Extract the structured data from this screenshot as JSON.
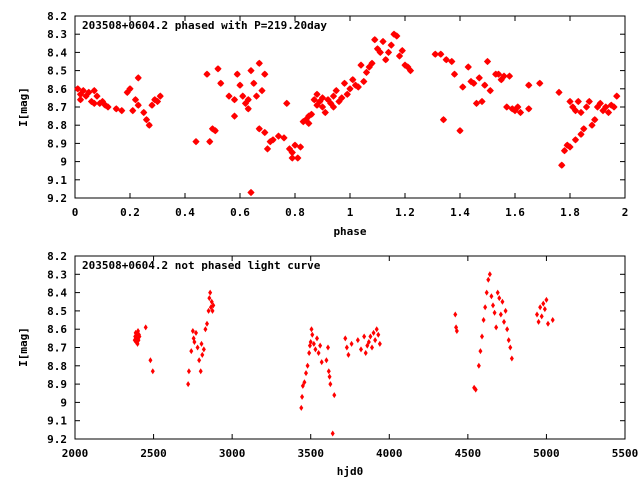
{
  "chart_data": [
    {
      "type": "scatter",
      "title": "203508+0604.2 phased with P=219.20day",
      "xlabel": "phase",
      "ylabel": "I[mag]",
      "xlim": [
        0,
        2
      ],
      "ylim": [
        8.2,
        9.2
      ],
      "y_inverted": true,
      "xticks": [
        "0",
        "0.2",
        "0.4",
        "0.6",
        "0.8",
        "1",
        "1.2",
        "1.4",
        "1.6",
        "1.8",
        "2"
      ],
      "yticks": [
        "8.2",
        "8.3",
        "8.4",
        "8.5",
        "8.6",
        "8.7",
        "8.8",
        "8.9",
        "9",
        "9.1",
        "9.2"
      ],
      "grid": false,
      "color": "#ff0000",
      "marker": "star",
      "points": [
        [
          0.01,
          8.6
        ],
        [
          0.02,
          8.63
        ],
        [
          0.02,
          8.66
        ],
        [
          0.03,
          8.61
        ],
        [
          0.04,
          8.64
        ],
        [
          0.05,
          8.62
        ],
        [
          0.06,
          8.67
        ],
        [
          0.07,
          8.61
        ],
        [
          0.07,
          8.68
        ],
        [
          0.08,
          8.64
        ],
        [
          0.09,
          8.68
        ],
        [
          0.1,
          8.67
        ],
        [
          0.11,
          8.69
        ],
        [
          0.12,
          8.7
        ],
        [
          0.15,
          8.71
        ],
        [
          0.17,
          8.72
        ],
        [
          0.19,
          8.62
        ],
        [
          0.2,
          8.6
        ],
        [
          0.21,
          8.72
        ],
        [
          0.22,
          8.66
        ],
        [
          0.23,
          8.54
        ],
        [
          0.23,
          8.69
        ],
        [
          0.25,
          8.73
        ],
        [
          0.26,
          8.77
        ],
        [
          0.27,
          8.8
        ],
        [
          0.28,
          8.69
        ],
        [
          0.29,
          8.66
        ],
        [
          0.3,
          8.67
        ],
        [
          0.31,
          8.64
        ],
        [
          0.44,
          8.89
        ],
        [
          0.48,
          8.52
        ],
        [
          0.49,
          8.89
        ],
        [
          0.5,
          8.82
        ],
        [
          0.51,
          8.83
        ],
        [
          0.52,
          8.49
        ],
        [
          0.53,
          8.57
        ],
        [
          0.56,
          8.64
        ],
        [
          0.58,
          8.66
        ],
        [
          0.58,
          8.75
        ],
        [
          0.59,
          8.52
        ],
        [
          0.6,
          8.58
        ],
        [
          0.61,
          8.64
        ],
        [
          0.62,
          8.68
        ],
        [
          0.63,
          8.66
        ],
        [
          0.63,
          8.71
        ],
        [
          0.64,
          8.5
        ],
        [
          0.64,
          9.17
        ],
        [
          0.65,
          8.57
        ],
        [
          0.66,
          8.64
        ],
        [
          0.67,
          8.46
        ],
        [
          0.67,
          8.82
        ],
        [
          0.68,
          8.61
        ],
        [
          0.69,
          8.52
        ],
        [
          0.69,
          8.84
        ],
        [
          0.7,
          8.93
        ],
        [
          0.71,
          8.89
        ],
        [
          0.72,
          8.88
        ],
        [
          0.74,
          8.86
        ],
        [
          0.76,
          8.87
        ],
        [
          0.77,
          8.68
        ],
        [
          0.78,
          8.93
        ],
        [
          0.79,
          8.95
        ],
        [
          0.79,
          8.98
        ],
        [
          0.8,
          8.91
        ],
        [
          0.81,
          8.98
        ],
        [
          0.82,
          8.92
        ],
        [
          0.83,
          8.78
        ],
        [
          0.84,
          8.77
        ],
        [
          0.85,
          8.79
        ],
        [
          0.85,
          8.75
        ],
        [
          0.86,
          8.74
        ],
        [
          0.87,
          8.66
        ],
        [
          0.88,
          8.69
        ],
        [
          0.88,
          8.63
        ],
        [
          0.89,
          8.67
        ],
        [
          0.9,
          8.65
        ],
        [
          0.9,
          8.7
        ],
        [
          0.91,
          8.73
        ],
        [
          0.92,
          8.66
        ],
        [
          0.93,
          8.68
        ],
        [
          0.94,
          8.64
        ],
        [
          0.94,
          8.7
        ],
        [
          0.95,
          8.61
        ],
        [
          0.96,
          8.67
        ],
        [
          0.97,
          8.65
        ],
        [
          0.98,
          8.57
        ],
        [
          0.99,
          8.63
        ],
        [
          1.0,
          8.6
        ],
        [
          1.01,
          8.55
        ],
        [
          1.02,
          8.58
        ],
        [
          1.03,
          8.59
        ],
        [
          1.04,
          8.47
        ],
        [
          1.05,
          8.56
        ],
        [
          1.06,
          8.51
        ],
        [
          1.07,
          8.48
        ],
        [
          1.08,
          8.46
        ],
        [
          1.09,
          8.33
        ],
        [
          1.1,
          8.38
        ],
        [
          1.11,
          8.4
        ],
        [
          1.12,
          8.34
        ],
        [
          1.13,
          8.44
        ],
        [
          1.14,
          8.4
        ],
        [
          1.15,
          8.36
        ],
        [
          1.16,
          8.3
        ],
        [
          1.17,
          8.31
        ],
        [
          1.18,
          8.42
        ],
        [
          1.19,
          8.39
        ],
        [
          1.2,
          8.47
        ],
        [
          1.21,
          8.48
        ],
        [
          1.22,
          8.5
        ],
        [
          1.31,
          8.41
        ],
        [
          1.33,
          8.41
        ],
        [
          1.34,
          8.77
        ],
        [
          1.35,
          8.44
        ],
        [
          1.37,
          8.45
        ],
        [
          1.38,
          8.52
        ],
        [
          1.4,
          8.83
        ],
        [
          1.41,
          8.59
        ],
        [
          1.43,
          8.48
        ],
        [
          1.44,
          8.56
        ],
        [
          1.45,
          8.57
        ],
        [
          1.46,
          8.68
        ],
        [
          1.47,
          8.54
        ],
        [
          1.48,
          8.67
        ],
        [
          1.49,
          8.58
        ],
        [
          1.5,
          8.45
        ],
        [
          1.51,
          8.61
        ],
        [
          1.53,
          8.52
        ],
        [
          1.54,
          8.52
        ],
        [
          1.55,
          8.55
        ],
        [
          1.56,
          8.53
        ],
        [
          1.57,
          8.7
        ],
        [
          1.58,
          8.53
        ],
        [
          1.59,
          8.71
        ],
        [
          1.6,
          8.72
        ],
        [
          1.61,
          8.7
        ],
        [
          1.62,
          8.73
        ],
        [
          1.65,
          8.58
        ],
        [
          1.65,
          8.71
        ],
        [
          1.69,
          8.57
        ],
        [
          1.76,
          8.62
        ],
        [
          1.77,
          9.02
        ],
        [
          1.78,
          8.94
        ],
        [
          1.79,
          8.91
        ],
        [
          1.8,
          8.67
        ],
        [
          1.8,
          8.92
        ],
        [
          1.81,
          8.7
        ],
        [
          1.82,
          8.88
        ],
        [
          1.82,
          8.72
        ],
        [
          1.83,
          8.67
        ],
        [
          1.84,
          8.85
        ],
        [
          1.84,
          8.73
        ],
        [
          1.85,
          8.82
        ],
        [
          1.86,
          8.7
        ],
        [
          1.87,
          8.67
        ],
        [
          1.88,
          8.8
        ],
        [
          1.89,
          8.77
        ],
        [
          1.9,
          8.7
        ],
        [
          1.91,
          8.68
        ],
        [
          1.92,
          8.72
        ],
        [
          1.93,
          8.7
        ],
        [
          1.94,
          8.73
        ],
        [
          1.95,
          8.69
        ],
        [
          1.96,
          8.7
        ],
        [
          1.97,
          8.64
        ]
      ]
    },
    {
      "type": "scatter",
      "title": "203508+0604.2 not phased light curve",
      "xlabel": "hjd0",
      "ylabel": "I[mag]",
      "xlim": [
        2000,
        5500
      ],
      "ylim": [
        8.2,
        9.2
      ],
      "y_inverted": true,
      "xticks": [
        "2000",
        "2500",
        "3000",
        "3500",
        "4000",
        "4500",
        "5000",
        "5500"
      ],
      "yticks": [
        "8.2",
        "8.3",
        "8.4",
        "8.5",
        "8.6",
        "8.7",
        "8.8",
        "8.9",
        "9",
        "9.1",
        "9.2"
      ],
      "grid": false,
      "color": "#ff0000",
      "marker": "diamond",
      "points": [
        [
          2380,
          8.66
        ],
        [
          2383,
          8.64
        ],
        [
          2386,
          8.62
        ],
        [
          2389,
          8.67
        ],
        [
          2392,
          8.63
        ],
        [
          2395,
          8.65
        ],
        [
          2398,
          8.68
        ],
        [
          2401,
          8.61
        ],
        [
          2404,
          8.66
        ],
        [
          2407,
          8.63
        ],
        [
          2410,
          8.64
        ],
        [
          2450,
          8.59
        ],
        [
          2480,
          8.77
        ],
        [
          2495,
          8.83
        ],
        [
          2720,
          8.9
        ],
        [
          2725,
          8.83
        ],
        [
          2740,
          8.72
        ],
        [
          2750,
          8.61
        ],
        [
          2755,
          8.65
        ],
        [
          2760,
          8.67
        ],
        [
          2770,
          8.62
        ],
        [
          2780,
          8.7
        ],
        [
          2790,
          8.77
        ],
        [
          2800,
          8.83
        ],
        [
          2805,
          8.68
        ],
        [
          2810,
          8.74
        ],
        [
          2820,
          8.71
        ],
        [
          2830,
          8.6
        ],
        [
          2840,
          8.57
        ],
        [
          2850,
          8.5
        ],
        [
          2855,
          8.43
        ],
        [
          2860,
          8.4
        ],
        [
          2865,
          8.48
        ],
        [
          2870,
          8.45
        ],
        [
          2875,
          8.5
        ],
        [
          2880,
          8.47
        ],
        [
          3440,
          9.03
        ],
        [
          3445,
          8.97
        ],
        [
          3450,
          8.91
        ],
        [
          3460,
          8.89
        ],
        [
          3470,
          8.84
        ],
        [
          3480,
          8.8
        ],
        [
          3490,
          8.73
        ],
        [
          3495,
          8.69
        ],
        [
          3500,
          8.67
        ],
        [
          3505,
          8.6
        ],
        [
          3510,
          8.63
        ],
        [
          3520,
          8.68
        ],
        [
          3530,
          8.71
        ],
        [
          3540,
          8.65
        ],
        [
          3550,
          8.73
        ],
        [
          3560,
          8.69
        ],
        [
          3570,
          8.78
        ],
        [
          3600,
          8.77
        ],
        [
          3610,
          8.7
        ],
        [
          3615,
          8.83
        ],
        [
          3620,
          8.86
        ],
        [
          3625,
          8.9
        ],
        [
          3640,
          9.17
        ],
        [
          3650,
          8.96
        ],
        [
          3720,
          8.65
        ],
        [
          3730,
          8.7
        ],
        [
          3740,
          8.74
        ],
        [
          3760,
          8.68
        ],
        [
          3800,
          8.66
        ],
        [
          3820,
          8.71
        ],
        [
          3840,
          8.64
        ],
        [
          3850,
          8.73
        ],
        [
          3860,
          8.69
        ],
        [
          3870,
          8.67
        ],
        [
          3880,
          8.64
        ],
        [
          3890,
          8.7
        ],
        [
          3900,
          8.62
        ],
        [
          3910,
          8.66
        ],
        [
          3920,
          8.6
        ],
        [
          3930,
          8.63
        ],
        [
          3940,
          8.68
        ],
        [
          4420,
          8.52
        ],
        [
          4425,
          8.59
        ],
        [
          4430,
          8.61
        ],
        [
          4540,
          8.92
        ],
        [
          4550,
          8.93
        ],
        [
          4570,
          8.8
        ],
        [
          4580,
          8.72
        ],
        [
          4590,
          8.64
        ],
        [
          4600,
          8.55
        ],
        [
          4610,
          8.48
        ],
        [
          4620,
          8.4
        ],
        [
          4630,
          8.33
        ],
        [
          4640,
          8.3
        ],
        [
          4650,
          8.42
        ],
        [
          4660,
          8.47
        ],
        [
          4670,
          8.51
        ],
        [
          4680,
          8.59
        ],
        [
          4690,
          8.4
        ],
        [
          4700,
          8.43
        ],
        [
          4710,
          8.52
        ],
        [
          4720,
          8.45
        ],
        [
          4730,
          8.56
        ],
        [
          4740,
          8.5
        ],
        [
          4750,
          8.6
        ],
        [
          4760,
          8.66
        ],
        [
          4770,
          8.7
        ],
        [
          4780,
          8.76
        ],
        [
          4940,
          8.52
        ],
        [
          4950,
          8.56
        ],
        [
          4960,
          8.48
        ],
        [
          4970,
          8.53
        ],
        [
          4980,
          8.46
        ],
        [
          4990,
          8.49
        ],
        [
          5000,
          8.44
        ],
        [
          5010,
          8.57
        ],
        [
          5040,
          8.55
        ]
      ]
    }
  ]
}
